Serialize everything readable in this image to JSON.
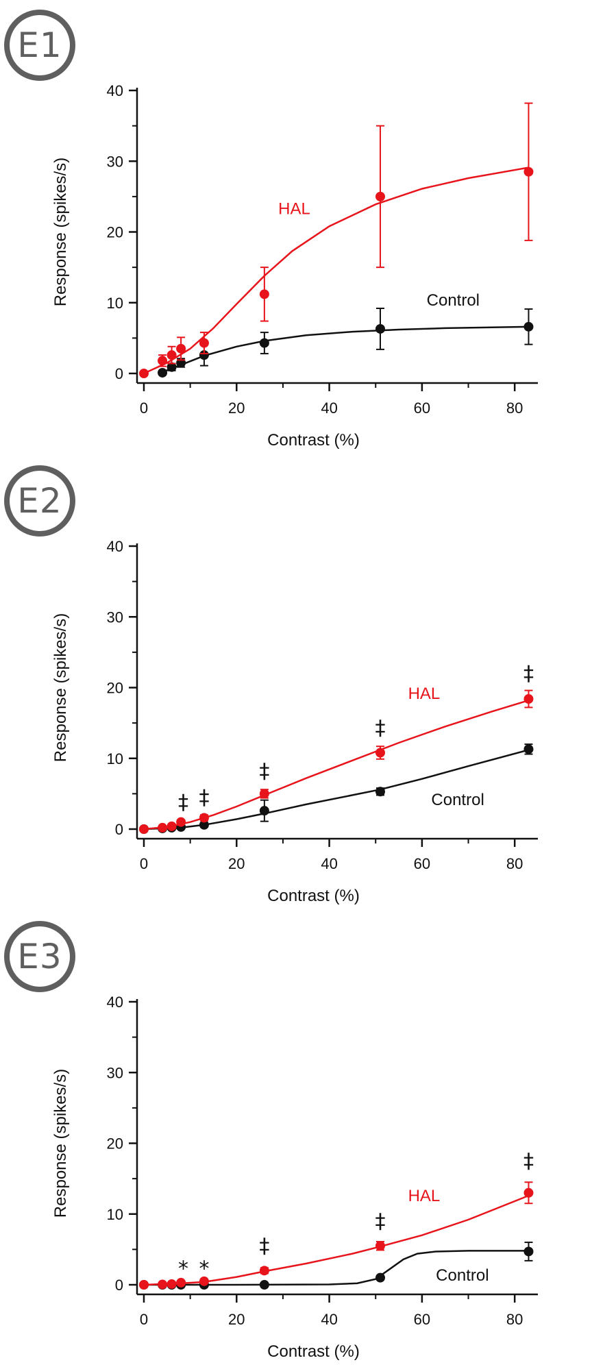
{
  "colors": {
    "hal": "#e8141b",
    "control": "#111111",
    "badge": "#5f5f5f"
  },
  "chart_data": [
    {
      "panel_label": "E1",
      "type": "line",
      "xlabel": "Contrast (%)",
      "ylabel": "Response (spikes/s)",
      "xlim": [
        0,
        85
      ],
      "ylim": [
        0,
        40
      ],
      "xticks": [
        "0",
        "20",
        "40",
        "60",
        "80"
      ],
      "yticks": [
        "0",
        "10",
        "20",
        "30",
        "40"
      ],
      "series": [
        {
          "name": "HAL",
          "color": "#e8141b",
          "x": [
            0,
            4,
            6,
            8,
            13,
            26,
            51,
            83
          ],
          "y": [
            0,
            1.8,
            2.6,
            3.5,
            4.3,
            11.2,
            25.0,
            28.5
          ],
          "err": [
            0,
            0.8,
            1.2,
            1.6,
            1.5,
            3.8,
            10.0,
            9.7
          ],
          "fit": [
            [
              0,
              0
            ],
            [
              5,
              1.5
            ],
            [
              10,
              3.5
            ],
            [
              15,
              6.4
            ],
            [
              20,
              9.8
            ],
            [
              26,
              13.8
            ],
            [
              32,
              17.3
            ],
            [
              40,
              20.8
            ],
            [
              50,
              23.9
            ],
            [
              60,
              26.1
            ],
            [
              70,
              27.6
            ],
            [
              83,
              29.1
            ]
          ]
        },
        {
          "name": "Control",
          "color": "#111111",
          "x": [
            4,
            6,
            8,
            13,
            26,
            51,
            83
          ],
          "y": [
            0.1,
            0.9,
            1.5,
            2.6,
            4.3,
            6.3,
            6.6
          ],
          "err": [
            0.3,
            0.5,
            0.6,
            1.5,
            1.5,
            2.9,
            2.5
          ],
          "fit": [
            [
              4,
              0.2
            ],
            [
              8,
              1.2
            ],
            [
              13,
              2.5
            ],
            [
              20,
              3.8
            ],
            [
              26,
              4.6
            ],
            [
              35,
              5.4
            ],
            [
              45,
              5.9
            ],
            [
              55,
              6.2
            ],
            [
              65,
              6.4
            ],
            [
              83,
              6.6
            ]
          ]
        }
      ],
      "annotations": [
        {
          "text": "HAL",
          "x": 29,
          "y": 22.5,
          "color": "#e8141b"
        },
        {
          "text": "Control",
          "x": 61,
          "y": 9.6,
          "color": "#111111"
        }
      ],
      "markers": []
    },
    {
      "panel_label": "E2",
      "type": "line",
      "xlabel": "Contrast (%)",
      "ylabel": "Response (spikes/s)",
      "xlim": [
        0,
        85
      ],
      "ylim": [
        0,
        40
      ],
      "xticks": [
        "0",
        "20",
        "40",
        "60",
        "80"
      ],
      "yticks": [
        "0",
        "10",
        "20",
        "30",
        "40"
      ],
      "series": [
        {
          "name": "HAL",
          "color": "#e8141b",
          "x": [
            0,
            4,
            6,
            8,
            13,
            26,
            51,
            83
          ],
          "y": [
            0,
            0.2,
            0.4,
            1.0,
            1.6,
            5.0,
            10.8,
            18.4
          ],
          "err": [
            0,
            0.2,
            0.3,
            0.3,
            0.4,
            0.6,
            0.9,
            1.2
          ],
          "fit": [
            [
              0,
              0
            ],
            [
              5,
              0.3
            ],
            [
              10,
              1.0
            ],
            [
              15,
              2.0
            ],
            [
              20,
              3.2
            ],
            [
              26,
              4.8
            ],
            [
              35,
              7.2
            ],
            [
              45,
              9.7
            ],
            [
              55,
              12.2
            ],
            [
              65,
              14.5
            ],
            [
              75,
              16.6
            ],
            [
              83,
              18.2
            ]
          ]
        },
        {
          "name": "Control",
          "color": "#111111",
          "x": [
            0,
            4,
            6,
            8,
            13,
            26,
            51,
            83
          ],
          "y": [
            0,
            0.1,
            0.2,
            0.3,
            0.6,
            2.6,
            5.3,
            11.3
          ],
          "err": [
            0,
            0.1,
            0.1,
            0.2,
            0.3,
            1.5,
            0.5,
            0.7
          ],
          "fit": [
            [
              0,
              0
            ],
            [
              8,
              0.2
            ],
            [
              13,
              0.6
            ],
            [
              20,
              1.4
            ],
            [
              26,
              2.2
            ],
            [
              35,
              3.5
            ],
            [
              45,
              4.8
            ],
            [
              51,
              5.6
            ],
            [
              60,
              7.1
            ],
            [
              70,
              8.9
            ],
            [
              83,
              11.2
            ]
          ]
        }
      ],
      "annotations": [
        {
          "text": "HAL",
          "x": 57,
          "y": 18.4,
          "color": "#e8141b"
        },
        {
          "text": "Control",
          "x": 62,
          "y": 3.4,
          "color": "#111111"
        }
      ],
      "markers": [
        {
          "text": "‡",
          "x": 8.5,
          "y": 2.8
        },
        {
          "text": "‡",
          "x": 13,
          "y": 3.5
        },
        {
          "text": "‡",
          "x": 26,
          "y": 7.2
        },
        {
          "text": "‡",
          "x": 51,
          "y": 13.3
        },
        {
          "text": "‡",
          "x": 83,
          "y": 21.0
        }
      ]
    },
    {
      "panel_label": "E3",
      "type": "line",
      "xlabel": "Contrast (%)",
      "ylabel": "Response (spikes/s)",
      "xlim": [
        0,
        85
      ],
      "ylim": [
        0,
        40
      ],
      "xticks": [
        "0",
        "20",
        "40",
        "60",
        "80"
      ],
      "yticks": [
        "0",
        "10",
        "20",
        "30",
        "40"
      ],
      "series": [
        {
          "name": "HAL",
          "color": "#e8141b",
          "x": [
            0,
            4,
            6,
            8,
            13,
            26,
            51,
            83
          ],
          "y": [
            0,
            0.05,
            0.1,
            0.3,
            0.5,
            2.0,
            5.5,
            13.0
          ],
          "err": [
            0,
            0.1,
            0.1,
            0.2,
            0.2,
            0.4,
            0.6,
            1.5
          ],
          "fit": [
            [
              0,
              0
            ],
            [
              8,
              0.2
            ],
            [
              13,
              0.4
            ],
            [
              20,
              1.1
            ],
            [
              26,
              1.9
            ],
            [
              35,
              3.0
            ],
            [
              45,
              4.4
            ],
            [
              51,
              5.4
            ],
            [
              60,
              7.0
            ],
            [
              70,
              9.2
            ],
            [
              83,
              12.6
            ]
          ]
        },
        {
          "name": "Control",
          "color": "#111111",
          "x": [
            0,
            4,
            6,
            8,
            13,
            26,
            51,
            83
          ],
          "y": [
            0,
            0,
            0,
            0,
            0,
            0,
            1.0,
            4.7
          ],
          "err": [
            0,
            0,
            0,
            0,
            0,
            0.1,
            0.3,
            1.3
          ],
          "fit": [
            [
              0,
              0
            ],
            [
              20,
              0
            ],
            [
              40,
              0.05
            ],
            [
              46,
              0.2
            ],
            [
              50,
              0.8
            ],
            [
              53,
              2.2
            ],
            [
              56,
              3.6
            ],
            [
              59,
              4.4
            ],
            [
              63,
              4.7
            ],
            [
              70,
              4.8
            ],
            [
              83,
              4.8
            ]
          ]
        }
      ],
      "annotations": [
        {
          "text": "HAL",
          "x": 57,
          "y": 11.8,
          "color": "#e8141b"
        },
        {
          "text": "Control",
          "x": 63,
          "y": 0.6,
          "color": "#111111"
        }
      ],
      "markers": [
        {
          "text": "*",
          "x": 8.5,
          "y": 1.3
        },
        {
          "text": "*",
          "x": 13,
          "y": 1.3
        },
        {
          "text": "‡",
          "x": 26,
          "y": 4.5
        },
        {
          "text": "‡",
          "x": 51,
          "y": 8.0
        },
        {
          "text": "‡",
          "x": 83,
          "y": 16.5
        }
      ]
    }
  ]
}
